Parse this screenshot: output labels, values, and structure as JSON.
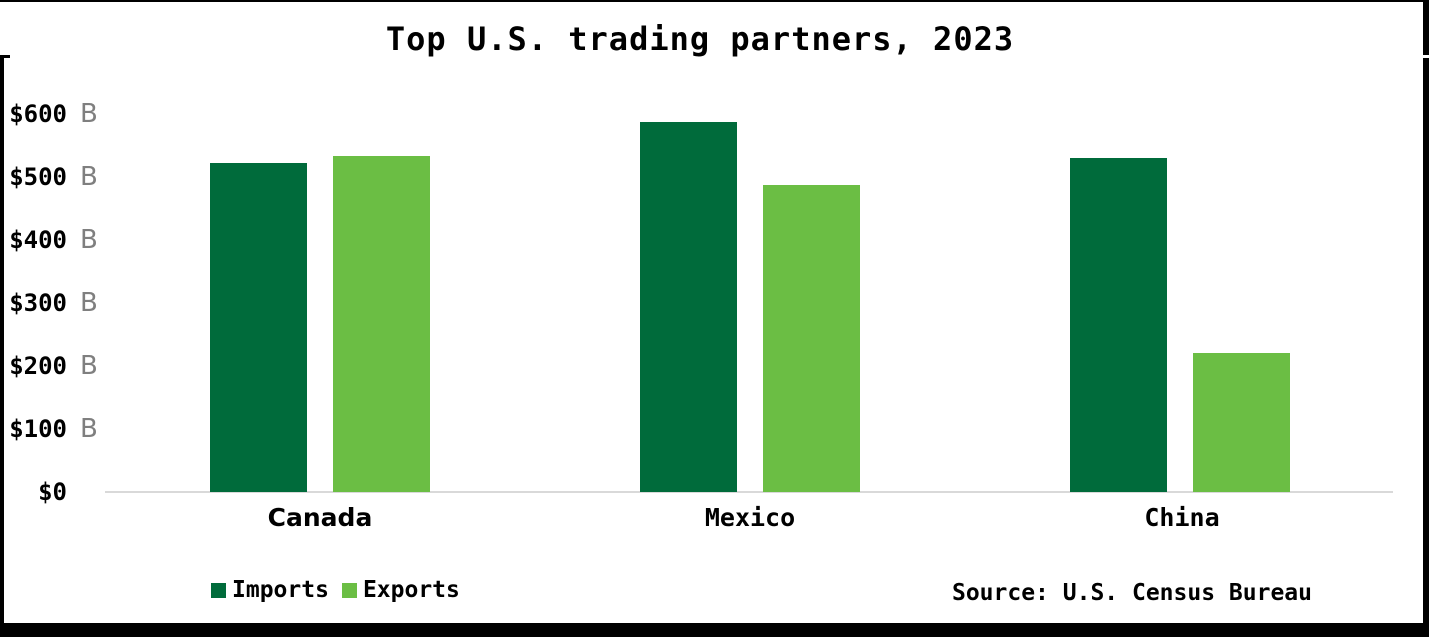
{
  "colors": {
    "imports": "#006B3B",
    "exports": "#6BBE44",
    "axis_line": "#D9D9D9",
    "unit_text": "#7F7F7F",
    "text": "#000000",
    "frame": "#000000",
    "background": "#FFFFFF"
  },
  "chart_data": {
    "type": "bar",
    "title": "Top U.S. trading partners, 2023",
    "categories": [
      "Canada",
      "Mexico",
      "China"
    ],
    "series": [
      {
        "name": "Imports",
        "values": [
          522,
          587,
          530
        ]
      },
      {
        "name": "Exports",
        "values": [
          533,
          487,
          220
        ]
      }
    ],
    "unit": "B",
    "ylim": [
      0,
      600
    ],
    "y_tick_interval": 100,
    "y_ticks": [
      {
        "amount": "$600",
        "unit": "B"
      },
      {
        "amount": "$500",
        "unit": "B"
      },
      {
        "amount": "$400",
        "unit": "B"
      },
      {
        "amount": "$300",
        "unit": "B"
      },
      {
        "amount": "$200",
        "unit": "B"
      },
      {
        "amount": "$100",
        "unit": "B"
      },
      {
        "amount": "$0",
        "unit": ""
      }
    ],
    "xlabel": "",
    "ylabel": "",
    "grid": false,
    "legend": {
      "position": "bottom-left",
      "entries": [
        "Imports",
        "Exports"
      ]
    },
    "source": "Source: U.S. Census Bureau"
  }
}
